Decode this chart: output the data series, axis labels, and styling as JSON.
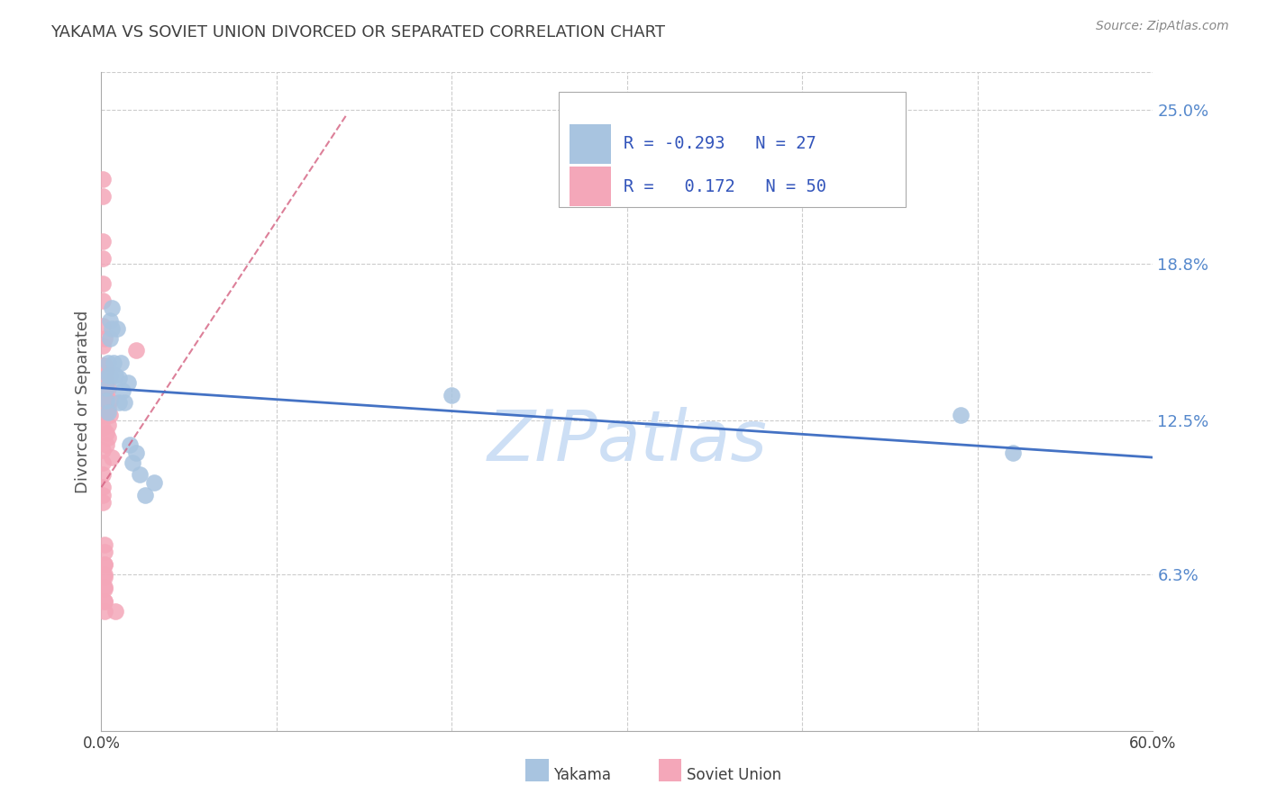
{
  "title": "YAKAMA VS SOVIET UNION DIVORCED OR SEPARATED CORRELATION CHART",
  "source": "Source: ZipAtlas.com",
  "ylabel": "Divorced or Separated",
  "xlim": [
    0.0,
    0.6
  ],
  "ylim": [
    0.0,
    0.265
  ],
  "ytick_labels_right": [
    "25.0%",
    "18.8%",
    "12.5%",
    "6.3%"
  ],
  "ytick_vals_right": [
    0.25,
    0.188,
    0.125,
    0.063
  ],
  "yakama_color": "#a8c4e0",
  "soviet_color": "#f4a7b9",
  "trend_yakama_color": "#4472c4",
  "trend_soviet_color": "#d46080",
  "watermark": "ZIPatlas",
  "watermark_color": "#cddff5",
  "background_color": "#ffffff",
  "grid_color": "#cccccc",
  "title_color": "#404040",
  "axis_label_color": "#555555",
  "right_tick_color": "#5588cc",
  "legend_text_color": "#3355bb",
  "yakama_x": [
    0.003,
    0.003,
    0.004,
    0.004,
    0.004,
    0.005,
    0.005,
    0.005,
    0.006,
    0.006,
    0.007,
    0.008,
    0.009,
    0.01,
    0.01,
    0.011,
    0.012,
    0.013,
    0.015,
    0.016,
    0.018,
    0.02,
    0.022,
    0.025,
    0.03,
    0.2,
    0.49,
    0.52
  ],
  "yakama_y": [
    0.138,
    0.133,
    0.148,
    0.143,
    0.128,
    0.165,
    0.158,
    0.143,
    0.17,
    0.162,
    0.148,
    0.143,
    0.162,
    0.142,
    0.132,
    0.148,
    0.137,
    0.132,
    0.14,
    0.115,
    0.108,
    0.112,
    0.103,
    0.095,
    0.1,
    0.135,
    0.127,
    0.112
  ],
  "soviet_x": [
    0.001,
    0.001,
    0.001,
    0.001,
    0.001,
    0.001,
    0.001,
    0.001,
    0.001,
    0.001,
    0.001,
    0.001,
    0.001,
    0.001,
    0.001,
    0.001,
    0.001,
    0.001,
    0.001,
    0.001,
    0.002,
    0.002,
    0.002,
    0.002,
    0.002,
    0.002,
    0.002,
    0.002,
    0.002,
    0.002,
    0.002,
    0.002,
    0.002,
    0.002,
    0.002,
    0.003,
    0.003,
    0.003,
    0.003,
    0.003,
    0.003,
    0.004,
    0.004,
    0.004,
    0.004,
    0.005,
    0.005,
    0.006,
    0.008,
    0.02
  ],
  "soviet_y": [
    0.222,
    0.215,
    0.197,
    0.19,
    0.18,
    0.173,
    0.163,
    0.155,
    0.147,
    0.142,
    0.137,
    0.13,
    0.127,
    0.122,
    0.113,
    0.108,
    0.103,
    0.098,
    0.095,
    0.092,
    0.067,
    0.063,
    0.058,
    0.052,
    0.158,
    0.147,
    0.142,
    0.135,
    0.075,
    0.072,
    0.067,
    0.062,
    0.057,
    0.052,
    0.048,
    0.145,
    0.14,
    0.135,
    0.128,
    0.12,
    0.115,
    0.138,
    0.13,
    0.123,
    0.118,
    0.133,
    0.127,
    0.11,
    0.048,
    0.153
  ],
  "trend_yakama_x0": 0.0,
  "trend_yakama_x1": 0.6,
  "trend_yakama_y0": 0.138,
  "trend_yakama_y1": 0.11,
  "trend_soviet_x0": 0.0,
  "trend_soviet_x1": 0.14,
  "trend_soviet_y0": 0.098,
  "trend_soviet_y1": 0.248
}
